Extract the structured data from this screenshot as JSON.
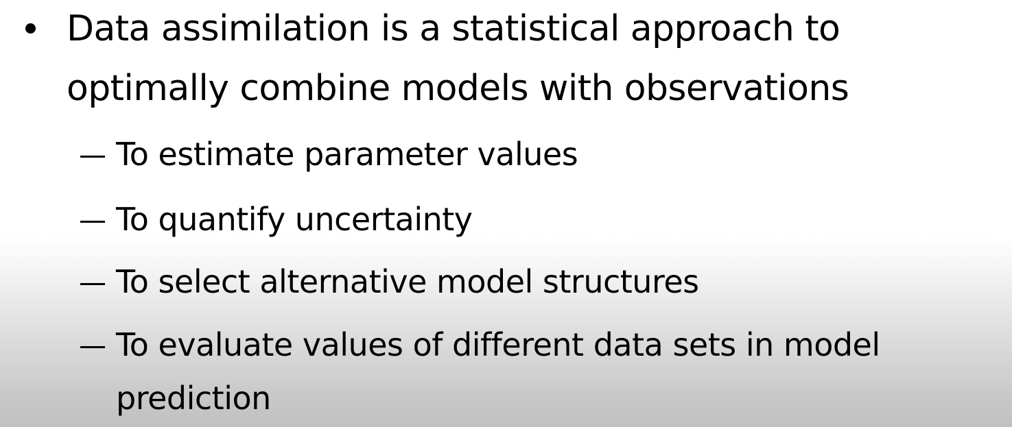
{
  "slide": {
    "main_bullet": {
      "line1": "Data assimilation is a statistical approach to",
      "line2": "optimally combine models with observations"
    },
    "sub_bullets": [
      {
        "line1": "To estimate parameter values"
      },
      {
        "line1": "To quantify uncertainty"
      },
      {
        "line1": "To select alternative model structures"
      },
      {
        "line1": "To evaluate values of different data sets in model",
        "line2": "prediction"
      }
    ]
  }
}
